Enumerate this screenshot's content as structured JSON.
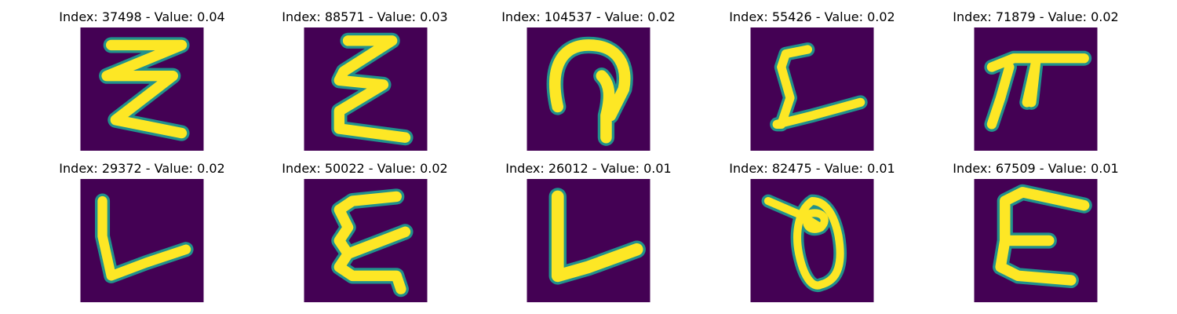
{
  "colors": {
    "background": "#440154",
    "stroke_edge": "#21918c",
    "stroke_mid": "#5ec962",
    "stroke_core": "#fde725"
  },
  "tiles": [
    {
      "title": "Index: 37498 - Value: 0.04",
      "glyph": "zigzag-three"
    },
    {
      "title": "Index: 88571 - Value: 0.03",
      "glyph": "zigzag-e"
    },
    {
      "title": "Index: 104537 - Value: 0.02",
      "glyph": "hook-arch"
    },
    {
      "title": "Index: 55426 - Value: 0.02",
      "glyph": "c-sweep"
    },
    {
      "title": "Index: 71879 - Value: 0.02",
      "glyph": "pi-shape"
    },
    {
      "title": "Index: 29372 - Value: 0.02",
      "glyph": "l-shape"
    },
    {
      "title": "Index: 50022 - Value: 0.02",
      "glyph": "wavy-e"
    },
    {
      "title": "Index: 26012 - Value: 0.01",
      "glyph": "l-shape-bold"
    },
    {
      "title": "Index: 82475 - Value: 0.01",
      "glyph": "loop-theta"
    },
    {
      "title": "Index: 67509 - Value: 0.01",
      "glyph": "e-shape"
    }
  ]
}
